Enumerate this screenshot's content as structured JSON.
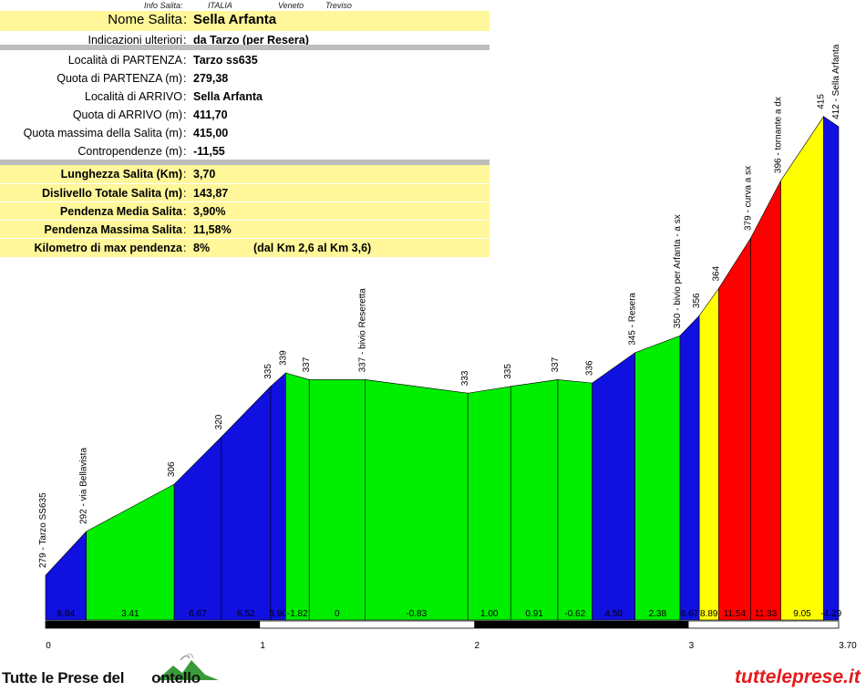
{
  "info": {
    "header_label": "Info Salita:",
    "country": "ITALIA",
    "region": "Veneto",
    "province": "Treviso"
  },
  "table": {
    "name_label": "Nome Salita",
    "name_value": "Sella Arfanta",
    "notes_label": "Indicazioni ulteriori",
    "notes_value": "da Tarzo (per Resera)",
    "start_place_label": "Località di PARTENZA",
    "start_place_value": "Tarzo ss635",
    "start_alt_label": "Quota di PARTENZA (m)",
    "start_alt_value": "279,38",
    "end_place_label": "Località di ARRIVO",
    "end_place_value": "Sella Arfanta",
    "end_alt_label": "Quota di ARRIVO (m)",
    "end_alt_value": "411,70",
    "max_alt_label": "Quota massima della Salita (m)",
    "max_alt_value": "415,00",
    "counter_label": "Contropendenze (m)",
    "counter_value": "-11,55",
    "length_label": "Lunghezza Salita (Km)",
    "length_value": "3,70",
    "gain_label": "Dislivello Totale Salita (m)",
    "gain_value": "143,87",
    "avg_label": "Pendenza Media Salita",
    "avg_value": "3,90%",
    "maxgrad_label": "Pendenza Massima Salita",
    "maxgrad_value": "11,58%",
    "maxkm_label": "Kilometro di max pendenza",
    "maxkm_value": "8%",
    "maxkm_range": "(dal Km 2,6 al Km 3,6)"
  },
  "footer": {
    "site_left": "Tutte le Prese del",
    "site_left_tail": "ontello",
    "site_right": "tutteleprese.it"
  },
  "chart_data": {
    "type": "area",
    "title": "",
    "xlabel": "",
    "ylabel": "",
    "xlim": [
      0,
      3.7
    ],
    "x_ticks": [
      "0",
      "1",
      "2",
      "3",
      "3.70"
    ],
    "points": [
      {
        "km": 0.0,
        "alt": 279,
        "label": "279 - Tarzo SS635"
      },
      {
        "km": 0.19,
        "alt": 292,
        "label": "292 - via Bellavista"
      },
      {
        "km": 0.6,
        "alt": 306,
        "label": "306"
      },
      {
        "km": 0.82,
        "alt": 320,
        "label": "320"
      },
      {
        "km": 1.05,
        "alt": 335,
        "label": "335"
      },
      {
        "km": 1.12,
        "alt": 339,
        "label": "339"
      },
      {
        "km": 1.23,
        "alt": 337,
        "label": "337"
      },
      {
        "km": 1.49,
        "alt": 337,
        "label": "337 - bivio Reseretta"
      },
      {
        "km": 1.97,
        "alt": 333,
        "label": "333"
      },
      {
        "km": 2.17,
        "alt": 335,
        "label": "335"
      },
      {
        "km": 2.39,
        "alt": 337,
        "label": "337"
      },
      {
        "km": 2.55,
        "alt": 336,
        "label": "336"
      },
      {
        "km": 2.75,
        "alt": 345,
        "label": "345 - Resera"
      },
      {
        "km": 2.96,
        "alt": 350,
        "label": "350 - bivio per Arfanta - a sx"
      },
      {
        "km": 3.05,
        "alt": 356,
        "label": "356"
      },
      {
        "km": 3.14,
        "alt": 364,
        "label": "364"
      },
      {
        "km": 3.29,
        "alt": 379,
        "label": "379 - curva a sx"
      },
      {
        "km": 3.43,
        "alt": 396,
        "label": "396 - tornante a dx"
      },
      {
        "km": 3.63,
        "alt": 415,
        "label": "415"
      },
      {
        "km": 3.7,
        "alt": 412,
        "label": "412 - Sella Arfanta"
      }
    ],
    "segment_grades": [
      "6.84",
      "3.41",
      "6.67",
      "6.52",
      "5.90",
      "-1.82",
      "0",
      "-0.83",
      "1.00",
      "0.91",
      "-0.62",
      "4.50",
      "2.38",
      "6.67",
      "8.89",
      "11.54",
      "11.33",
      "9.05",
      "-4.29"
    ],
    "segment_colors": [
      "#1010e0",
      "#00ee00",
      "#1010e0",
      "#1010e0",
      "#1010e0",
      "#00ee00",
      "#00ee00",
      "#00ee00",
      "#00ee00",
      "#00ee00",
      "#00ee00",
      "#1010e0",
      "#00ee00",
      "#1010e0",
      "#ffff00",
      "#ff0000",
      "#ff0000",
      "#ffff00",
      "#1010e0"
    ]
  }
}
